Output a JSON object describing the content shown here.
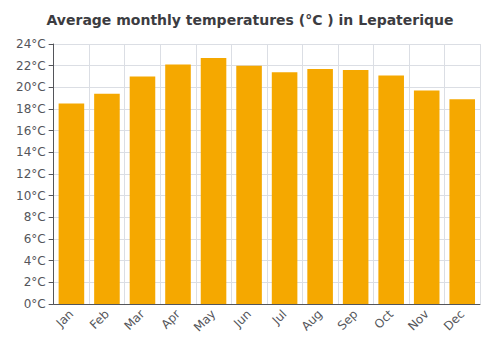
{
  "chart_data": {
    "type": "bar",
    "title": "Average monthly temperatures (°C ) in Lepaterique",
    "categories": [
      "Jan",
      "Feb",
      "Mar",
      "Apr",
      "May",
      "Jun",
      "Jul",
      "Aug",
      "Sep",
      "Oct",
      "Nov",
      "Dec"
    ],
    "values": [
      18.5,
      19.4,
      21.0,
      22.1,
      22.7,
      22.0,
      21.4,
      21.7,
      21.6,
      21.1,
      19.7,
      18.9
    ],
    "color": "#F5A800",
    "ylim": [
      0,
      24
    ],
    "yticks": [
      {
        "value": 0,
        "label": "0°C"
      },
      {
        "value": 2,
        "label": "2°C"
      },
      {
        "value": 4,
        "label": "4°C"
      },
      {
        "value": 6,
        "label": "6°C"
      },
      {
        "value": 8,
        "label": "8°C"
      },
      {
        "value": 10,
        "label": "10°C"
      },
      {
        "value": 12,
        "label": "12°C"
      },
      {
        "value": 14,
        "label": "14°C"
      },
      {
        "value": 16,
        "label": "16°C"
      },
      {
        "value": 18,
        "label": "18°C"
      },
      {
        "value": 20,
        "label": "20°C"
      },
      {
        "value": 22,
        "label": "22°C"
      },
      {
        "value": 24,
        "label": "24°C"
      }
    ],
    "grid": true
  }
}
